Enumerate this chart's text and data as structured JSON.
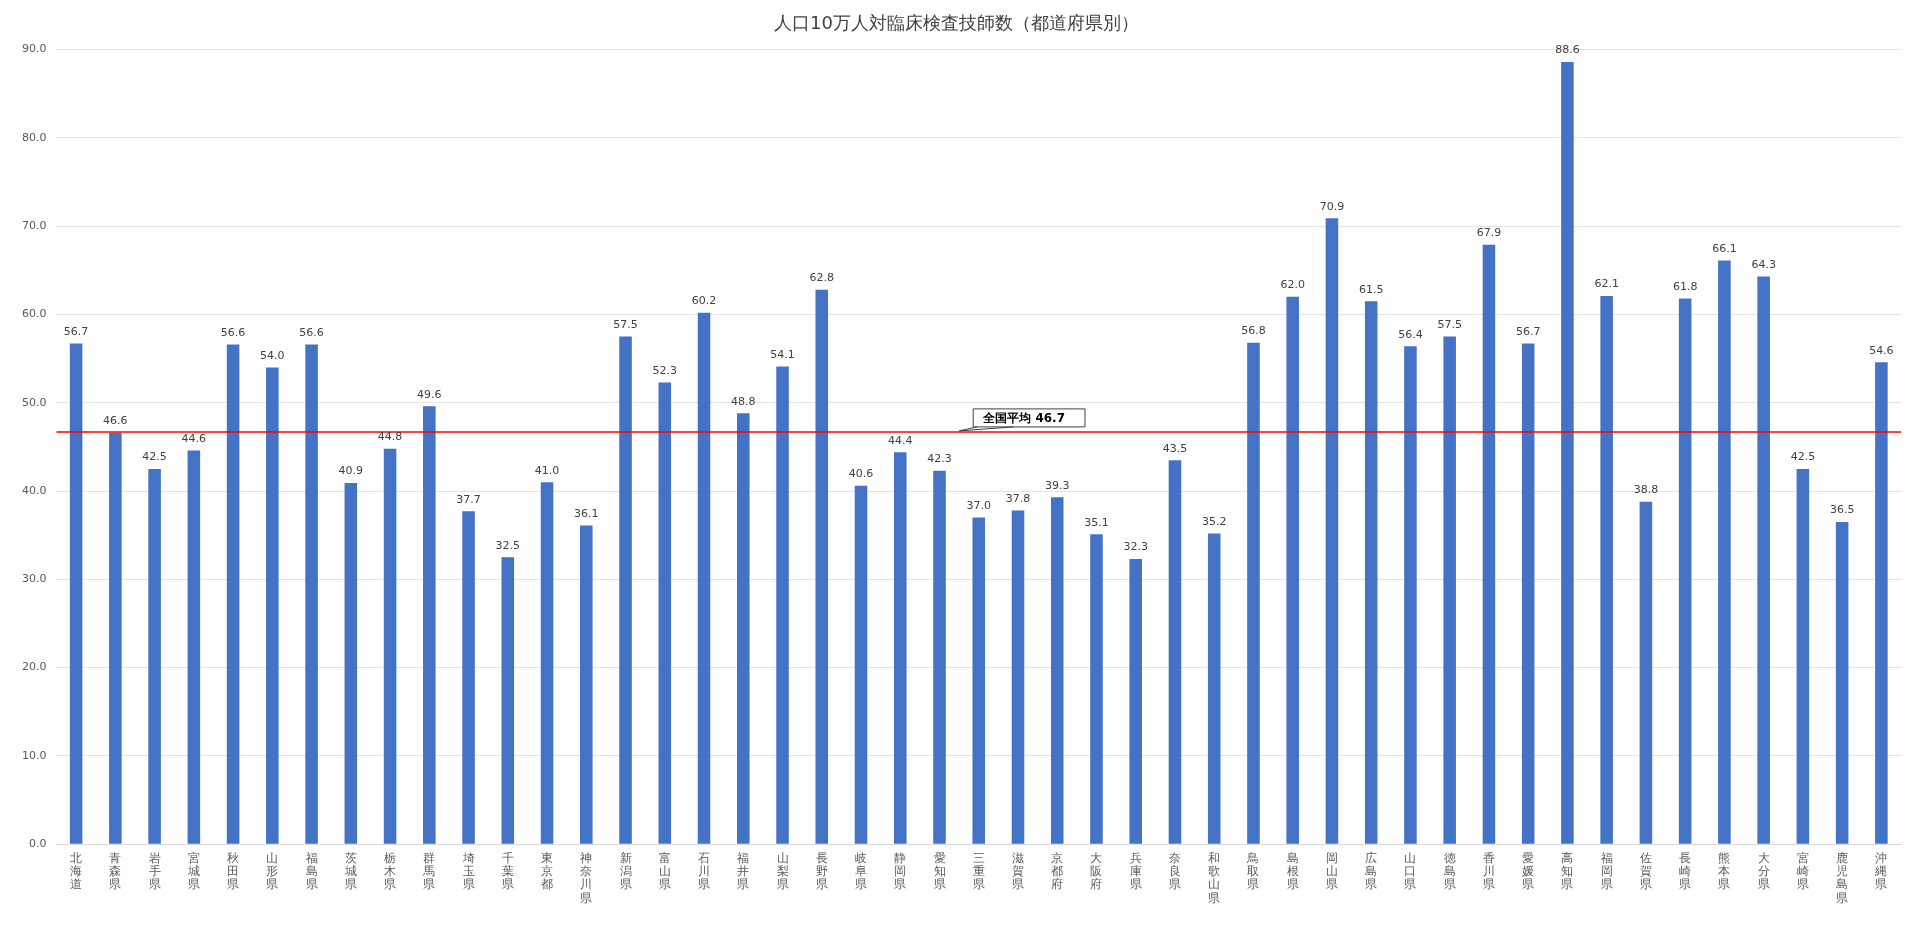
{
  "chart_data": {
    "type": "bar",
    "title": "人口10万人対臨床検査技師数（都道府県別）",
    "categories": [
      "北海道",
      "青森県",
      "岩手県",
      "宮城県",
      "秋田県",
      "山形県",
      "福島県",
      "茨城県",
      "栃木県",
      "群馬県",
      "埼玉県",
      "千葉県",
      "東京都",
      "神奈川県",
      "新潟県",
      "富山県",
      "石川県",
      "福井県",
      "山梨県",
      "長野県",
      "岐阜県",
      "静岡県",
      "愛知県",
      "三重県",
      "滋賀県",
      "京都府",
      "大阪府",
      "兵庫県",
      "奈良県",
      "和歌山県",
      "鳥取県",
      "島根県",
      "岡山県",
      "広島県",
      "山口県",
      "徳島県",
      "香川県",
      "愛媛県",
      "高知県",
      "福岡県",
      "佐賀県",
      "長崎県",
      "熊本県",
      "大分県",
      "宮崎県",
      "鹿児島県",
      "沖縄県"
    ],
    "values": [
      56.7,
      46.6,
      42.5,
      44.6,
      56.6,
      54.0,
      56.6,
      40.9,
      44.8,
      49.6,
      37.7,
      32.5,
      41.0,
      36.1,
      57.5,
      52.3,
      60.2,
      48.8,
      54.1,
      62.8,
      40.6,
      44.4,
      42.3,
      37.0,
      37.8,
      39.3,
      35.1,
      32.3,
      43.5,
      35.2,
      56.8,
      62.0,
      70.9,
      61.5,
      56.4,
      57.5,
      67.9,
      56.7,
      88.6,
      62.1,
      38.8,
      61.8,
      66.1,
      64.3,
      42.5,
      36.5,
      54.6
    ],
    "value_labels": [
      "56.7",
      "46.6",
      "42.5",
      "44.6",
      "56.6",
      "54.0",
      "56.6",
      "40.9",
      "44.8",
      "49.6",
      "37.7",
      "32.5",
      "41.0",
      "36.1",
      "57.5",
      "52.3",
      "60.2",
      "48.8",
      "54.1",
      "62.8",
      "40.6",
      "44.4",
      "42.3",
      "37.0",
      "37.8",
      "39.3",
      "35.1",
      "32.3",
      "43.5",
      "35.2",
      "56.8",
      "62.0",
      "70.9",
      "61.5",
      "56.4",
      "57.5",
      "67.9",
      "56.7",
      "88.6",
      "62.1",
      "38.8",
      "61.8",
      "66.1",
      "64.3",
      "42.5",
      "36.5",
      "54.6"
    ],
    "color": "#4472c4",
    "ylim": [
      0,
      90
    ],
    "yticks": [
      {
        "value": 0,
        "label": "0.0"
      },
      {
        "value": 10,
        "label": "10.0"
      },
      {
        "value": 20,
        "label": "20.0"
      },
      {
        "value": 30,
        "label": "30.0"
      },
      {
        "value": 40,
        "label": "40.0"
      },
      {
        "value": 50,
        "label": "50.0"
      },
      {
        "value": 60,
        "label": "60.0"
      },
      {
        "value": 70,
        "label": "70.0"
      },
      {
        "value": 80,
        "label": "80.0"
      },
      {
        "value": 90,
        "label": "90.0"
      }
    ],
    "grid": "y",
    "legend": false,
    "ref_lines": [
      {
        "axis": "y",
        "value": 46.7,
        "label": "全国平均 46.7",
        "color": "#ff0000",
        "line_style": "solid"
      }
    ]
  }
}
